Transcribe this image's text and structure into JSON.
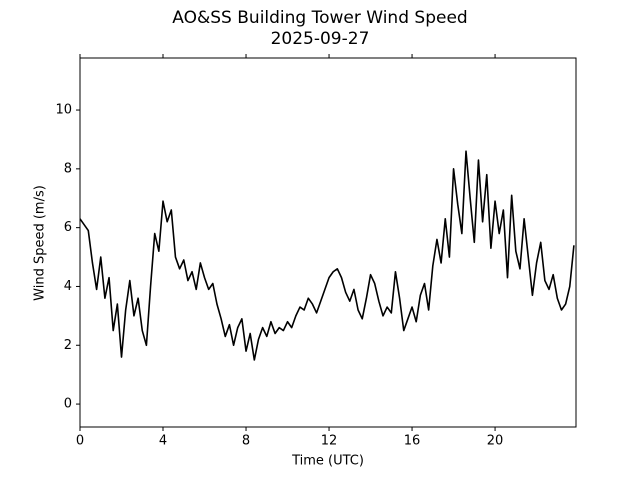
{
  "chart_data": {
    "type": "line",
    "title": "AO&SS Building Tower Wind Speed",
    "subtitle": "2025-09-27",
    "x_label": "Time (UTC)",
    "y_label": "Wind Speed (m/s)",
    "xlim": [
      0,
      23.9
    ],
    "ylim": [
      -0.78,
      11.77
    ],
    "xticks": [
      0,
      4,
      8,
      12,
      16,
      20
    ],
    "yticks": [
      0,
      2,
      4,
      6,
      8,
      10
    ],
    "series": [
      {
        "name": "Wind Speed",
        "color": "#000000",
        "x": [
          0,
          0.2,
          0.4,
          0.6,
          0.8,
          1,
          1.2,
          1.4,
          1.6,
          1.8,
          2,
          2.2,
          2.4,
          2.6,
          2.8,
          3,
          3.2,
          3.4,
          3.6,
          3.8,
          4,
          4.2,
          4.4,
          4.6,
          4.8,
          5,
          5.2,
          5.4,
          5.6,
          5.8,
          6,
          6.2,
          6.4,
          6.6,
          6.8,
          7,
          7.2,
          7.4,
          7.6,
          7.8,
          8,
          8.2,
          8.4,
          8.6,
          8.8,
          9,
          9.2,
          9.4,
          9.6,
          9.8,
          10,
          10.2,
          10.4,
          10.6,
          10.8,
          11,
          11.2,
          11.4,
          11.6,
          11.8,
          12,
          12.2,
          12.4,
          12.6,
          12.8,
          13,
          13.2,
          13.4,
          13.6,
          13.8,
          14,
          14.2,
          14.4,
          14.6,
          14.8,
          15,
          15.2,
          15.4,
          15.6,
          15.8,
          16,
          16.2,
          16.4,
          16.6,
          16.8,
          17,
          17.2,
          17.4,
          17.6,
          17.8,
          18,
          18.2,
          18.4,
          18.6,
          18.8,
          19,
          19.2,
          19.4,
          19.6,
          19.8,
          20,
          20.2,
          20.4,
          20.6,
          20.8,
          21,
          21.2,
          21.4,
          21.6,
          21.8,
          22,
          22.2,
          22.4,
          22.6,
          22.8,
          23,
          23.2,
          23.4,
          23.6,
          23.8
        ],
        "values": [
          6.3,
          6.1,
          5.9,
          4.8,
          3.9,
          5.0,
          3.6,
          4.3,
          2.5,
          3.4,
          1.6,
          3.2,
          4.2,
          3.0,
          3.6,
          2.5,
          2.0,
          4.0,
          5.8,
          5.2,
          6.9,
          6.2,
          6.6,
          5.0,
          4.6,
          4.9,
          4.2,
          4.5,
          3.9,
          4.8,
          4.3,
          3.9,
          4.1,
          3.4,
          2.9,
          2.3,
          2.7,
          2.0,
          2.6,
          2.9,
          1.8,
          2.4,
          1.5,
          2.2,
          2.6,
          2.3,
          2.8,
          2.4,
          2.6,
          2.5,
          2.8,
          2.6,
          3.0,
          3.3,
          3.2,
          3.6,
          3.4,
          3.1,
          3.5,
          3.9,
          4.3,
          4.5,
          4.6,
          4.3,
          3.8,
          3.5,
          3.9,
          3.2,
          2.9,
          3.6,
          4.4,
          4.1,
          3.5,
          3.0,
          3.3,
          3.1,
          4.5,
          3.6,
          2.5,
          2.9,
          3.3,
          2.8,
          3.7,
          4.1,
          3.2,
          4.7,
          5.6,
          4.8,
          6.3,
          5.0,
          8.0,
          6.8,
          5.8,
          8.6,
          7.0,
          5.5,
          8.3,
          6.2,
          7.8,
          5.3,
          6.9,
          5.8,
          6.6,
          4.3,
          7.1,
          5.2,
          4.6,
          6.3,
          5.0,
          3.7,
          4.8,
          5.5,
          4.2,
          3.9,
          4.4,
          3.6,
          3.2,
          3.4,
          4.0,
          5.4
        ]
      }
    ]
  }
}
